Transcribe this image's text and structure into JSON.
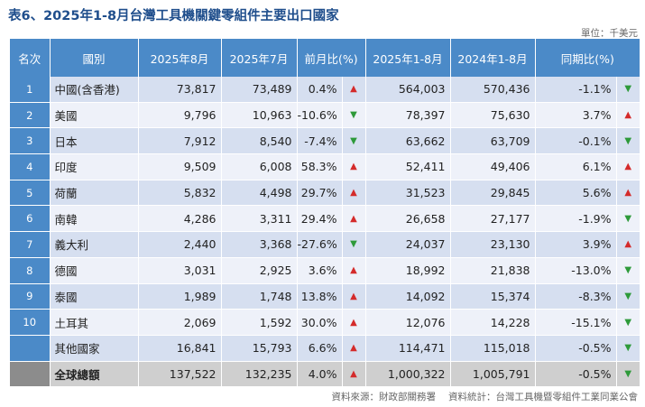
{
  "title": "表6、2025年1-8月台灣工具機關鍵零組件主要出口國家",
  "unit": "單位：千美元",
  "headers": {
    "rank": "名次",
    "country": "國別",
    "aug2025": "2025年8月",
    "jul2025": "2025年7月",
    "mom": "前月比(%)",
    "ytd2025": "2025年1-8月",
    "ytd2024": "2024年1-8月",
    "yoy": "同期比(%)"
  },
  "rows": [
    {
      "rank": "1",
      "country": "中國(含香港)",
      "aug2025": "73,817",
      "jul2025": "73,489",
      "mom": "0.4%",
      "mom_dir": "up",
      "ytd2025": "564,003",
      "ytd2024": "570,436",
      "yoy": "-1.1%",
      "yoy_dir": "down"
    },
    {
      "rank": "2",
      "country": "美國",
      "aug2025": "9,796",
      "jul2025": "10,963",
      "mom": "-10.6%",
      "mom_dir": "down",
      "ytd2025": "78,397",
      "ytd2024": "75,630",
      "yoy": "3.7%",
      "yoy_dir": "up"
    },
    {
      "rank": "3",
      "country": "日本",
      "aug2025": "7,912",
      "jul2025": "8,540",
      "mom": "-7.4%",
      "mom_dir": "down",
      "ytd2025": "63,662",
      "ytd2024": "63,709",
      "yoy": "-0.1%",
      "yoy_dir": "down"
    },
    {
      "rank": "4",
      "country": "印度",
      "aug2025": "9,509",
      "jul2025": "6,008",
      "mom": "58.3%",
      "mom_dir": "up",
      "ytd2025": "52,411",
      "ytd2024": "49,406",
      "yoy": "6.1%",
      "yoy_dir": "up"
    },
    {
      "rank": "5",
      "country": "荷蘭",
      "aug2025": "5,832",
      "jul2025": "4,498",
      "mom": "29.7%",
      "mom_dir": "up",
      "ytd2025": "31,523",
      "ytd2024": "29,845",
      "yoy": "5.6%",
      "yoy_dir": "up"
    },
    {
      "rank": "6",
      "country": "南韓",
      "aug2025": "4,286",
      "jul2025": "3,311",
      "mom": "29.4%",
      "mom_dir": "up",
      "ytd2025": "26,658",
      "ytd2024": "27,177",
      "yoy": "-1.9%",
      "yoy_dir": "down"
    },
    {
      "rank": "7",
      "country": "義大利",
      "aug2025": "2,440",
      "jul2025": "3,368",
      "mom": "-27.6%",
      "mom_dir": "down",
      "ytd2025": "24,037",
      "ytd2024": "23,130",
      "yoy": "3.9%",
      "yoy_dir": "up"
    },
    {
      "rank": "8",
      "country": "德國",
      "aug2025": "3,031",
      "jul2025": "2,925",
      "mom": "3.6%",
      "mom_dir": "up",
      "ytd2025": "18,992",
      "ytd2024": "21,838",
      "yoy": "-13.0%",
      "yoy_dir": "down"
    },
    {
      "rank": "9",
      "country": "泰國",
      "aug2025": "1,989",
      "jul2025": "1,748",
      "mom": "13.8%",
      "mom_dir": "up",
      "ytd2025": "14,092",
      "ytd2024": "15,374",
      "yoy": "-8.3%",
      "yoy_dir": "down"
    },
    {
      "rank": "10",
      "country": "土耳其",
      "aug2025": "2,069",
      "jul2025": "1,592",
      "mom": "30.0%",
      "mom_dir": "up",
      "ytd2025": "12,076",
      "ytd2024": "14,228",
      "yoy": "-15.1%",
      "yoy_dir": "down"
    }
  ],
  "other": {
    "country": "其他國家",
    "aug2025": "16,841",
    "jul2025": "15,793",
    "mom": "6.6%",
    "mom_dir": "up",
    "ytd2025": "114,471",
    "ytd2024": "115,018",
    "yoy": "-0.5%",
    "yoy_dir": "down"
  },
  "total": {
    "country": "全球總額",
    "aug2025": "137,522",
    "jul2025": "132,235",
    "mom": "4.0%",
    "mom_dir": "up",
    "ytd2025": "1,000,322",
    "ytd2024": "1,005,791",
    "yoy": "-0.5%",
    "yoy_dir": "down"
  },
  "footer": {
    "source": "資料來源：財政部關務署",
    "stats": "資料統計：台灣工具機暨零組件工業同業公會"
  },
  "colors": {
    "header": "#4b8ac8",
    "up": "#d42b2b",
    "down": "#2e9a3a"
  }
}
